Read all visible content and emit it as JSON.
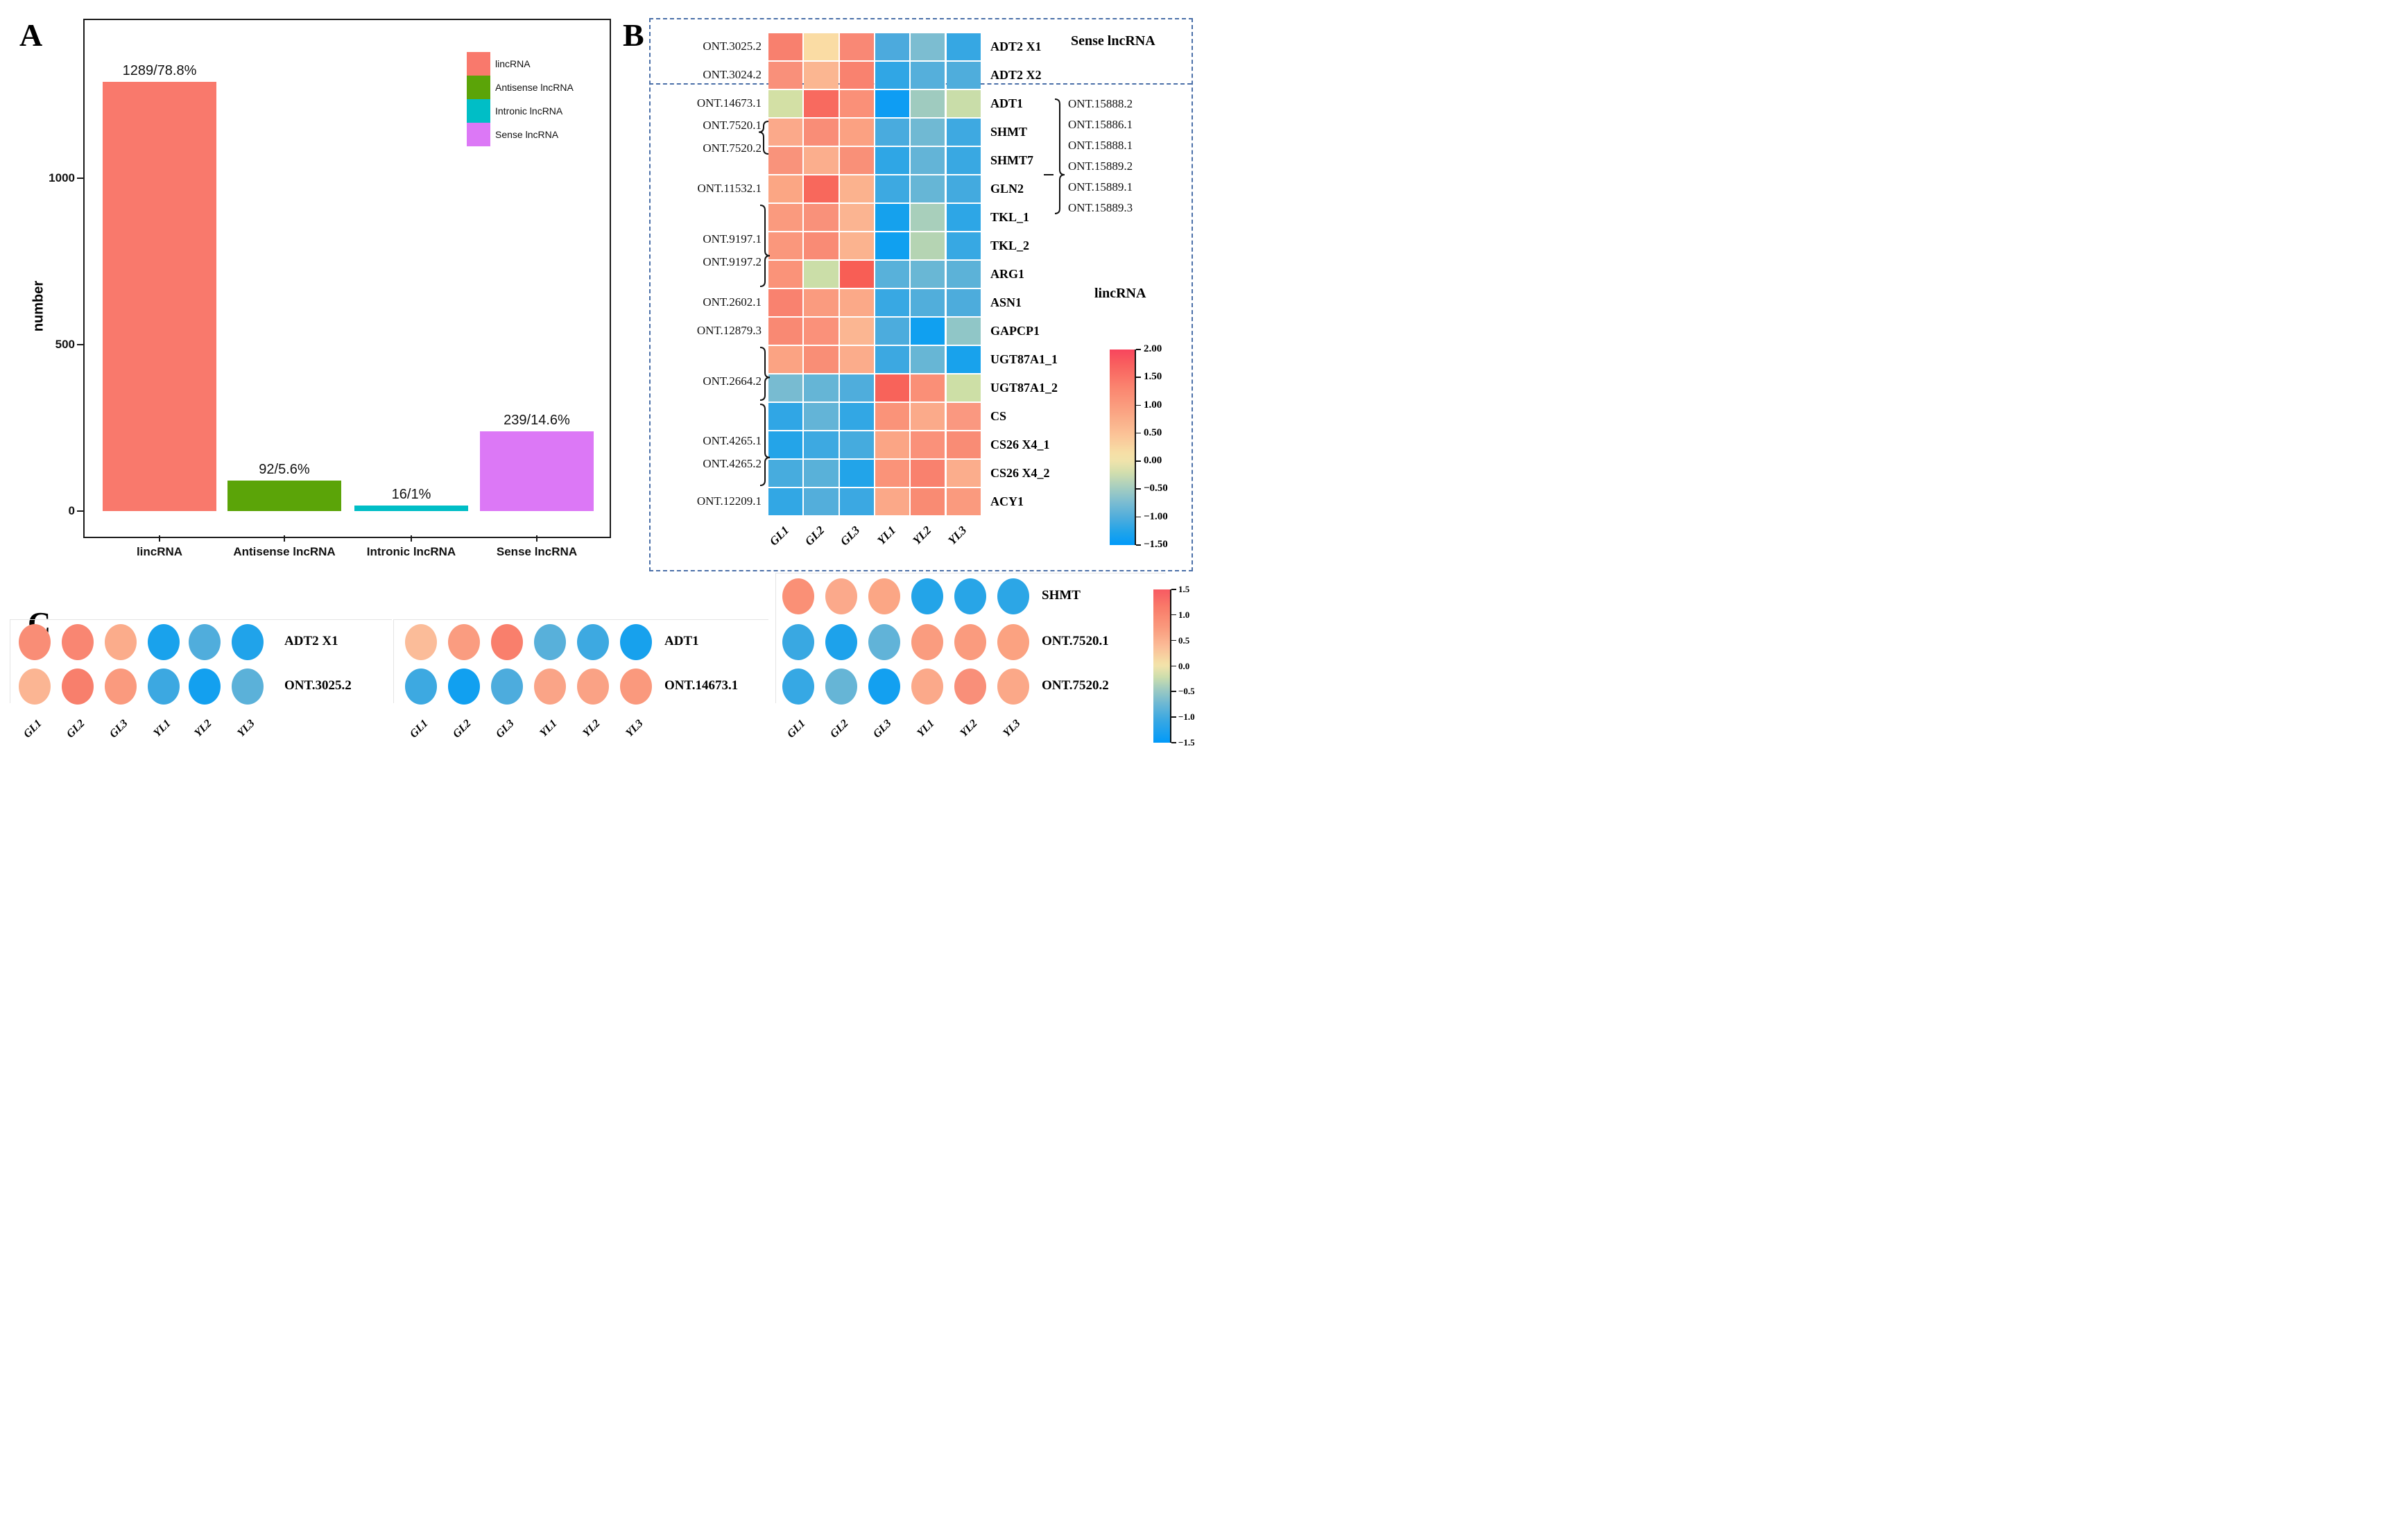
{
  "chart_data": [
    {
      "panel_label": "A",
      "type": "bar",
      "title": "",
      "xlabel": "",
      "ylabel": "number",
      "categories": [
        "lincRNA",
        "Antisense lncRNA",
        "Intronic lncRNA",
        "Sense lncRNA"
      ],
      "values": [
        1289,
        92,
        16,
        239
      ],
      "bar_labels": [
        "1289/78.8%",
        "92/5.6%",
        "16/1%",
        "239/14.6%"
      ],
      "bar_colors": [
        "#F9796C",
        "#5BA408",
        "#00BEC6",
        "#DC78F6"
      ],
      "yticks": [
        0,
        500,
        1000
      ],
      "ylim": [
        0,
        1350
      ],
      "grid": false,
      "legend_position": "top-right",
      "legend": [
        {
          "label": "lincRNA",
          "color": "#F9796C"
        },
        {
          "label": "Antisense lncRNA",
          "color": "#5BA408"
        },
        {
          "label": "Intronic lncRNA",
          "color": "#00BEC6"
        },
        {
          "label": "Sense lncRNA",
          "color": "#DC78F6"
        }
      ]
    },
    {
      "panel_label": "B",
      "type": "heatmap",
      "sense_group_label": "Sense lncRNA",
      "linc_group_label": "lincRNA",
      "columns": [
        "GL1",
        "GL2",
        "GL3",
        "YL1",
        "YL2",
        "YL3"
      ],
      "rows": [
        {
          "gene": "ADT2 X1",
          "values": [
            1.0,
            0.15,
            1.0,
            -0.85,
            -0.6,
            -1.0
          ],
          "colors": [
            "#F8806E",
            "#FADCA4",
            "#F98875",
            "#4CAADD",
            "#7CBDD1",
            "#36A7E3"
          ]
        },
        {
          "gene": "ADT2 X2",
          "values": [
            0.95,
            0.5,
            1.1,
            -1.0,
            -0.8,
            -0.85
          ],
          "colors": [
            "#F9907A",
            "#FBB691",
            "#F9826F",
            "#30A6E5",
            "#55AFDB",
            "#4FADDC"
          ]
        },
        {
          "gene": "ADT1",
          "values": [
            -0.2,
            1.5,
            0.95,
            -1.4,
            -0.5,
            -0.28
          ],
          "colors": [
            "#D3E0A5",
            "#F86A5F",
            "#FA9078",
            "#0E9DF3",
            "#9FCBBF",
            "#C9DDA9"
          ]
        },
        {
          "gene": "SHMT",
          "values": [
            0.62,
            1.0,
            0.75,
            -0.88,
            -0.68,
            -0.95
          ],
          "colors": [
            "#FBA98A",
            "#F98D77",
            "#FBA182",
            "#49ABDE",
            "#70B9D3",
            "#3EA9E1"
          ]
        },
        {
          "gene": "SHMT7",
          "values": [
            0.92,
            0.58,
            0.98,
            -1.02,
            -0.75,
            -0.97
          ],
          "colors": [
            "#F9937B",
            "#FBAE8D",
            "#F99078",
            "#2FA6E5",
            "#63B4D7",
            "#39A8E2"
          ]
        },
        {
          "gene": "GLN2",
          "values": [
            0.68,
            1.55,
            0.52,
            -0.95,
            -0.74,
            -0.9
          ],
          "colors": [
            "#FBA684",
            "#F8685C",
            "#FBB28E",
            "#3DA9E1",
            "#66B6D6",
            "#43AADF"
          ]
        },
        {
          "gene": "TKL_1",
          "values": [
            0.85,
            0.95,
            0.5,
            -1.3,
            -0.42,
            -1.02
          ],
          "colors": [
            "#FA9A7E",
            "#F9917A",
            "#FBB491",
            "#15A1ED",
            "#A8CFBB",
            "#2DA6E6"
          ]
        },
        {
          "gene": "TKL_2",
          "values": [
            0.88,
            1.0,
            0.52,
            -1.35,
            -0.38,
            -0.98
          ],
          "colors": [
            "#FA977C",
            "#F98B75",
            "#FBB38F",
            "#10A0F0",
            "#B5D4B3",
            "#37A8E3"
          ]
        },
        {
          "gene": "ARG1",
          "values": [
            0.9,
            -0.25,
            1.65,
            -0.78,
            -0.7,
            -0.76
          ],
          "colors": [
            "#FA9379",
            "#CBDEA8",
            "#F85E55",
            "#58B1DA",
            "#69B7D5",
            "#5CB2D8"
          ]
        },
        {
          "gene": "ASN1",
          "values": [
            1.1,
            0.85,
            0.65,
            -0.97,
            -0.82,
            -0.84
          ],
          "colors": [
            "#F9826F",
            "#FA9B7F",
            "#FBA988",
            "#38A8E3",
            "#51AEDB",
            "#4DACDC"
          ]
        },
        {
          "gene": "GAPCP1",
          "values": [
            1.0,
            0.95,
            0.5,
            -0.84,
            -1.35,
            -0.58
          ],
          "colors": [
            "#F98973",
            "#FA917A",
            "#FBB692",
            "#4CACDD",
            "#10A0F0",
            "#90C6C7"
          ]
        },
        {
          "gene": "UGT87A1_1",
          "values": [
            0.72,
            0.98,
            0.62,
            -0.96,
            -0.73,
            -1.2
          ],
          "colors": [
            "#FBA383",
            "#F98E76",
            "#FBAC8B",
            "#3CA8E1",
            "#67B6D5",
            "#18A2EC"
          ]
        },
        {
          "gene": "UGT87A1_2",
          "values": [
            -0.65,
            -0.74,
            -0.83,
            1.6,
            1.0,
            -0.22
          ],
          "colors": [
            "#78BBD1",
            "#65B5D6",
            "#4FADDC",
            "#F8635A",
            "#FA8F77",
            "#CDDFA6"
          ]
        },
        {
          "gene": "CS",
          "values": [
            -1.0,
            -0.75,
            -0.99,
            0.9,
            0.64,
            0.82
          ],
          "colors": [
            "#30A6E5",
            "#63B4D7",
            "#32A7E4",
            "#FA9379",
            "#FBAA8A",
            "#FA9880"
          ]
        },
        {
          "gene": "CS26 X4_1",
          "values": [
            -1.1,
            -0.95,
            -0.88,
            0.68,
            0.94,
            1.0
          ],
          "colors": [
            "#24A4E8",
            "#3DA9E1",
            "#45ABDE",
            "#FBA585",
            "#FA917A",
            "#F98C75"
          ]
        },
        {
          "gene": "CS26 X4_2",
          "values": [
            -0.87,
            -0.78,
            -1.12,
            0.9,
            1.1,
            0.6
          ],
          "colors": [
            "#47ACDE",
            "#59B1D9",
            "#22A4E9",
            "#FA9379",
            "#F9816E",
            "#FBAD8C"
          ]
        },
        {
          "gene": "ACY1",
          "values": [
            -0.99,
            -0.8,
            -0.96,
            0.66,
            1.02,
            0.85
          ],
          "colors": [
            "#32A7E4",
            "#53AEDB",
            "#3BA8E2",
            "#FBA888",
            "#F98B73",
            "#FA9A7E"
          ]
        }
      ],
      "left_labels": [
        {
          "text": "ONT.3025.2",
          "row": 0
        },
        {
          "text": "ONT.3024.2",
          "row": 1
        },
        {
          "text": "ONT.14673.1",
          "row": 2
        },
        {
          "text": "ONT.7520.1",
          "row": 2.8
        },
        {
          "text": "ONT.7520.2",
          "row": 3.6
        },
        {
          "text": "ONT.11532.1",
          "row": 5
        },
        {
          "text": "ONT.9197.1",
          "row": 6.8
        },
        {
          "text": "ONT.9197.2",
          "row": 7.6
        },
        {
          "text": "ONT.2602.1",
          "row": 9
        },
        {
          "text": "ONT.12879.3",
          "row": 10
        },
        {
          "text": "ONT.2664.2",
          "row": 11.8
        },
        {
          "text": "ONT.4265.1",
          "row": 13.9
        },
        {
          "text": "ONT.4265.2",
          "row": 14.7
        },
        {
          "text": "ONT.12209.1",
          "row": 16
        }
      ],
      "right_ont_parent_gene": "SHMT7",
      "right_ont_labels": [
        "ONT.15888.2",
        "ONT.15886.1",
        "ONT.15888.1",
        "ONT.15889.2",
        "ONT.15889.1",
        "ONT.15889.3"
      ],
      "associations": [
        {
          "lncRNAs": [
            "ONT.7520.1",
            "ONT.7520.2"
          ],
          "genes": [
            "SHMT"
          ]
        },
        {
          "lncRNAs": [
            "ONT.9197.1",
            "ONT.9197.2"
          ],
          "genes": [
            "TKL_1",
            "TKL_2",
            "ARG1"
          ]
        },
        {
          "lncRNAs": [
            "ONT.2664.2"
          ],
          "genes": [
            "UGT87A1_1",
            "UGT87A1_2"
          ]
        },
        {
          "lncRNAs": [
            "ONT.4265.1",
            "ONT.4265.2"
          ],
          "genes": [
            "CS",
            "CS26 X4_1",
            "CS26 X4_2"
          ]
        },
        {
          "lncRNAs": [
            "ONT.15888.2",
            "ONT.15886.1",
            "ONT.15888.1",
            "ONT.15889.2",
            "ONT.15889.1",
            "ONT.15889.3"
          ],
          "genes": [
            "SHMT7"
          ]
        }
      ],
      "colorbar": {
        "max": 2.0,
        "min": -1.5,
        "ticks": [
          "2.00",
          "1.50",
          "1.00",
          "0.50",
          "0.00",
          "−0.50",
          "−1.00",
          "−1.50"
        ]
      }
    },
    {
      "panel_label": "C",
      "type": "dot-heatmap",
      "columns": [
        "GL1",
        "GL2",
        "GL3",
        "YL1",
        "YL2",
        "YL3"
      ],
      "groups": [
        [
          {
            "label": "ADT2 X1",
            "values": [
              0.9,
              1.0,
              0.6,
              -1.2,
              -0.8,
              -1.1
            ],
            "colors": [
              "#F98D76",
              "#F98672",
              "#FBAC8B",
              "#19A2EC",
              "#50ADDC",
              "#20A3EA"
            ]
          },
          {
            "label": "ONT.3025.2",
            "values": [
              0.55,
              1.2,
              0.85,
              -0.9,
              -1.3,
              -0.7
            ],
            "colors": [
              "#FBB593",
              "#F87F6C",
              "#FA9A7E",
              "#3CA8E1",
              "#13A0EF",
              "#5BB1D9"
            ]
          }
        ],
        [
          {
            "label": "ADT1",
            "values": [
              0.5,
              0.85,
              1.25,
              -0.75,
              -0.9,
              -1.2
            ],
            "colors": [
              "#FBBC99",
              "#FA9C80",
              "#F97F6C",
              "#58B0DA",
              "#3DA9E1",
              "#17A1ED"
            ]
          },
          {
            "label": "ONT.14673.1",
            "values": [
              -0.9,
              -1.3,
              -0.8,
              0.8,
              0.8,
              0.9
            ],
            "colors": [
              "#3DA9E1",
              "#11A0F0",
              "#4DACDD",
              "#FAA487",
              "#FAA285",
              "#FA997D"
            ]
          }
        ],
        [
          {
            "label": "SHMT",
            "values": [
              0.95,
              0.85,
              0.85,
              -1.0,
              -1.0,
              -1.0
            ],
            "colors": [
              "#FA9076",
              "#FBA98B",
              "#FBA685",
              "#23A4E8",
              "#28A5E7",
              "#2CA6E6"
            ]
          },
          {
            "label": "ONT.7520.1",
            "values": [
              -0.95,
              -1.25,
              -0.7,
              0.85,
              0.85,
              0.8
            ],
            "colors": [
              "#39A8E2",
              "#1DA2EB",
              "#61B3D8",
              "#FA9C7F",
              "#FA9B7E",
              "#FBA281"
            ]
          },
          {
            "label": "ONT.7520.2",
            "values": [
              -0.95,
              -0.7,
              -1.3,
              0.7,
              0.95,
              0.7
            ],
            "colors": [
              "#36A8E4",
              "#66B5D6",
              "#13A0F0",
              "#FBA98A",
              "#F98F79",
              "#FBA888"
            ]
          }
        ]
      ],
      "colorbar": {
        "max": 1.5,
        "min": -1.5,
        "ticks": [
          "1.5",
          "1.0",
          "0.5",
          "0.0",
          "−0.5",
          "−1.0",
          "−1.5"
        ]
      }
    }
  ]
}
